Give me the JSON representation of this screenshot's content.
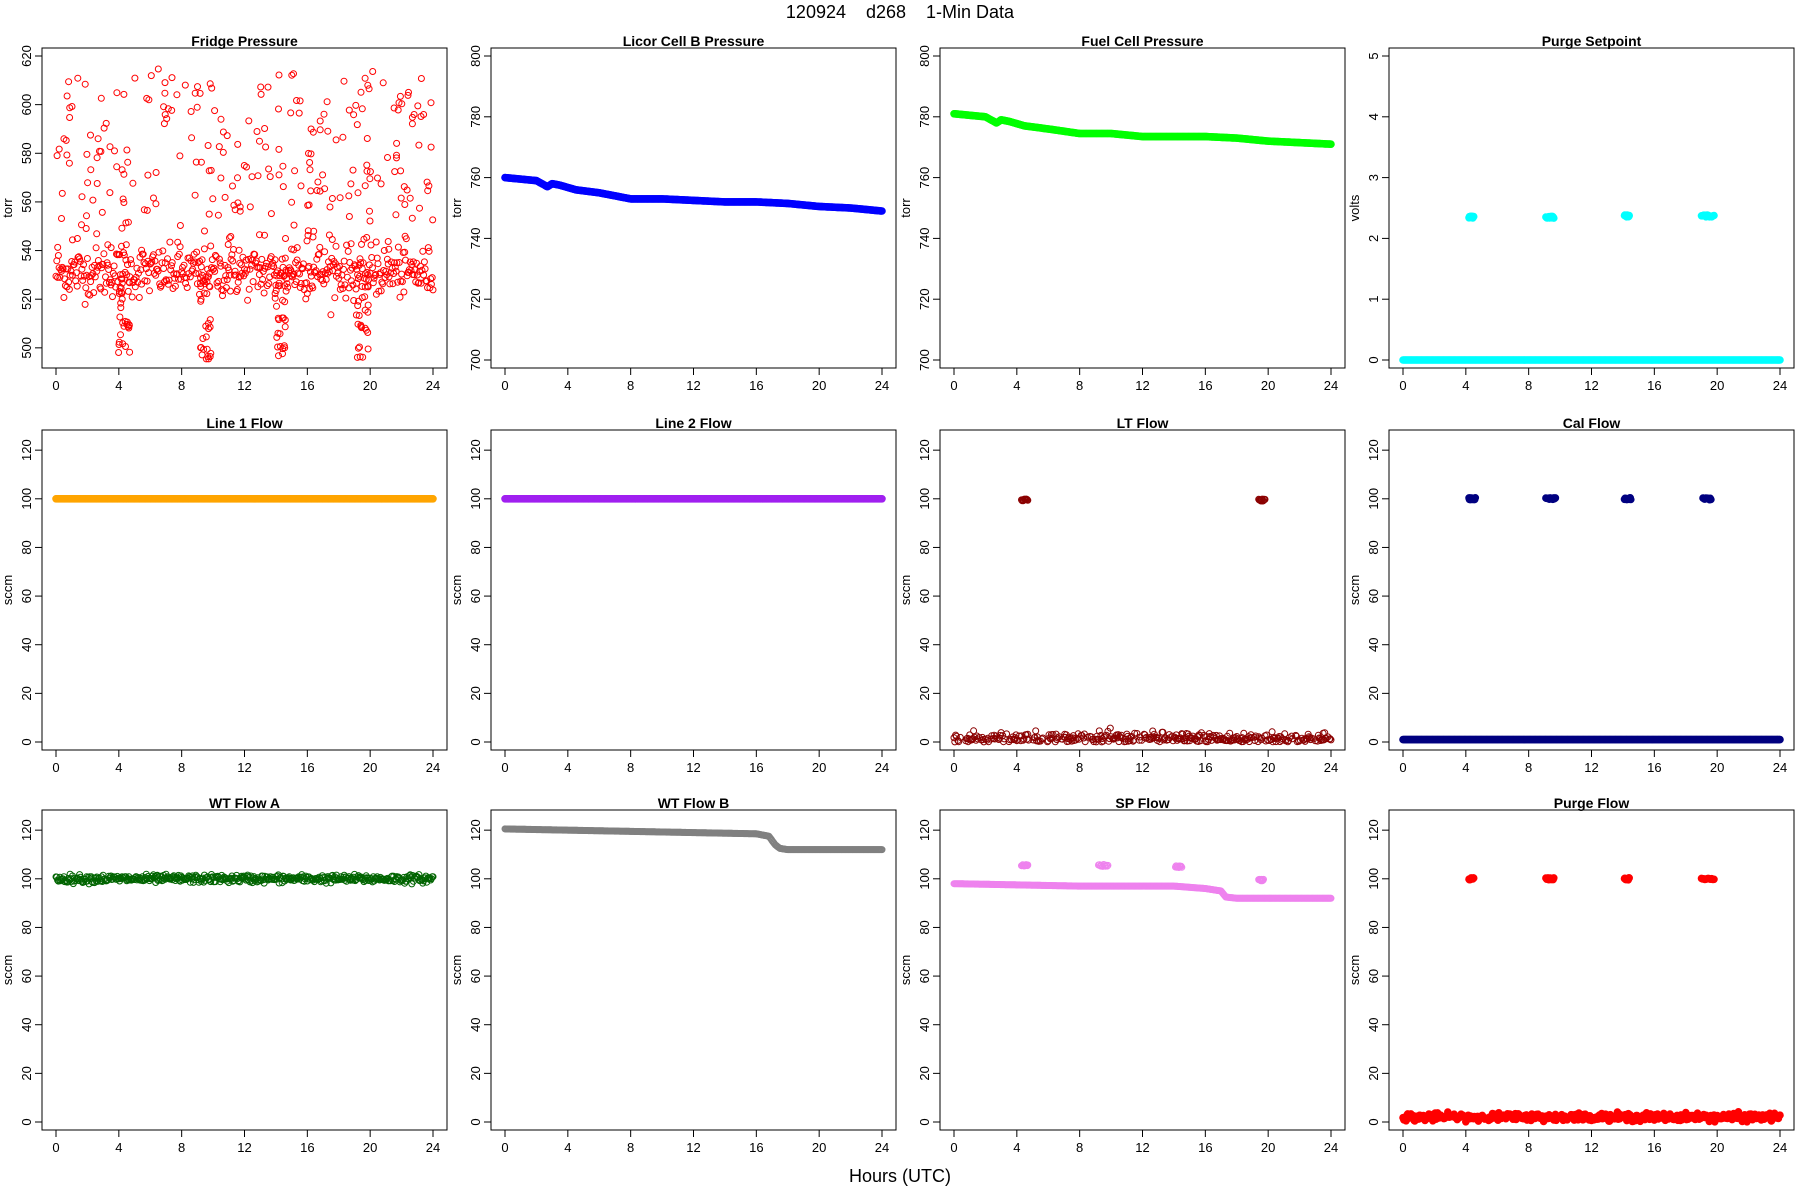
{
  "figure": {
    "title": "120924    d268    1-Min Data",
    "xlabel": "Hours (UTC)"
  },
  "chart_data": [
    {
      "type": "scatter",
      "title": "Fridge Pressure",
      "ylabel": "torr",
      "xlim": [
        0,
        24
      ],
      "ylim": [
        495,
        620
      ],
      "xticks": [
        0,
        4,
        8,
        12,
        16,
        20,
        24
      ],
      "yticks": [
        500,
        520,
        540,
        560,
        580,
        600,
        620
      ],
      "grid": false,
      "series": [
        {
          "color": "#ff0000",
          "marker": "open-circle",
          "baseline": 531,
          "spread": 5,
          "outliers": {
            "count": 260,
            "min": 540,
            "max": 615
          },
          "dips": [
            [
              4.3,
              498
            ],
            [
              9.5,
              495
            ],
            [
              14.3,
              496
            ],
            [
              19.5,
              496
            ]
          ]
        }
      ]
    },
    {
      "type": "scatter",
      "title": "Licor Cell B Pressure",
      "ylabel": "torr",
      "xlim": [
        0,
        24
      ],
      "ylim": [
        700,
        800
      ],
      "xticks": [
        0,
        4,
        8,
        12,
        16,
        20,
        24
      ],
      "yticks": [
        700,
        720,
        740,
        760,
        780,
        800
      ],
      "grid": false,
      "series": [
        {
          "color": "#0000ff",
          "marker": "filled-circle",
          "x": [
            0,
            1,
            2,
            2.7,
            3,
            3.5,
            4.5,
            6,
            8,
            10,
            12,
            14,
            16,
            18,
            20,
            22,
            24
          ],
          "y": [
            760,
            759.5,
            759,
            757,
            758,
            757.5,
            756,
            755,
            753,
            753,
            752.5,
            752,
            752,
            751.5,
            750.5,
            750,
            749
          ]
        }
      ]
    },
    {
      "type": "scatter",
      "title": "Fuel Cell Pressure",
      "ylabel": "torr",
      "xlim": [
        0,
        24
      ],
      "ylim": [
        700,
        800
      ],
      "xticks": [
        0,
        4,
        8,
        12,
        16,
        20,
        24
      ],
      "yticks": [
        700,
        720,
        740,
        760,
        780,
        800
      ],
      "grid": false,
      "series": [
        {
          "color": "#00ff00",
          "marker": "filled-circle",
          "x": [
            0,
            1,
            2,
            2.7,
            3,
            3.5,
            4.5,
            6,
            8,
            10,
            12,
            14,
            16,
            18,
            20,
            22,
            24
          ],
          "y": [
            781,
            780.5,
            780,
            778,
            779,
            778.5,
            777,
            776,
            774.5,
            774.5,
            773.5,
            773.5,
            773.5,
            773,
            772,
            771.5,
            771
          ]
        }
      ]
    },
    {
      "type": "scatter",
      "title": "Purge Setpoint",
      "ylabel": "volts",
      "xlim": [
        0,
        24
      ],
      "ylim": [
        0,
        5
      ],
      "xticks": [
        0,
        4,
        8,
        12,
        16,
        20,
        24
      ],
      "yticks": [
        0,
        1,
        2,
        3,
        4,
        5
      ],
      "grid": false,
      "series": [
        {
          "color": "#00ffff",
          "marker": "filled-circle",
          "baseline": 0,
          "spread": 0,
          "events": [
            [
              4.2,
              4.5,
              2.35
            ],
            [
              9.1,
              9.6,
              2.35
            ],
            [
              14.1,
              14.4,
              2.37
            ],
            [
              19.0,
              19.8,
              2.37
            ]
          ]
        }
      ]
    },
    {
      "type": "scatter",
      "title": "Line 1 Flow",
      "ylabel": "sccm",
      "xlim": [
        0,
        24
      ],
      "ylim": [
        0,
        125
      ],
      "xticks": [
        0,
        4,
        8,
        12,
        16,
        20,
        24
      ],
      "yticks": [
        0,
        20,
        40,
        60,
        80,
        100,
        120
      ],
      "grid": false,
      "series": [
        {
          "color": "#ffa500",
          "marker": "filled-circle",
          "baseline": 100,
          "spread": 0
        }
      ]
    },
    {
      "type": "scatter",
      "title": "Line 2 Flow",
      "ylabel": "sccm",
      "xlim": [
        0,
        24
      ],
      "ylim": [
        0,
        125
      ],
      "xticks": [
        0,
        4,
        8,
        12,
        16,
        20,
        24
      ],
      "yticks": [
        0,
        20,
        40,
        60,
        80,
        100,
        120
      ],
      "grid": false,
      "series": [
        {
          "color": "#a020f0",
          "marker": "filled-circle",
          "baseline": 100,
          "spread": 0
        }
      ]
    },
    {
      "type": "scatter",
      "title": "LT Flow",
      "ylabel": "sccm",
      "xlim": [
        0,
        24
      ],
      "ylim": [
        0,
        125
      ],
      "xticks": [
        0,
        4,
        8,
        12,
        16,
        20,
        24
      ],
      "yticks": [
        0,
        20,
        40,
        60,
        80,
        100,
        120
      ],
      "grid": false,
      "series": [
        {
          "color": "#8b0000",
          "marker": "open-circle",
          "baseline": 1,
          "spread": 1.5,
          "events": [
            [
              4.3,
              4.7,
              99.5
            ],
            [
              19.4,
              19.8,
              99.5
            ]
          ]
        }
      ]
    },
    {
      "type": "scatter",
      "title": "Cal Flow",
      "ylabel": "sccm",
      "xlim": [
        0,
        24
      ],
      "ylim": [
        0,
        125
      ],
      "xticks": [
        0,
        4,
        8,
        12,
        16,
        20,
        24
      ],
      "yticks": [
        0,
        20,
        40,
        60,
        80,
        100,
        120
      ],
      "grid": false,
      "series": [
        {
          "color": "#000080",
          "marker": "filled-circle",
          "baseline": 1,
          "spread": 0,
          "events": [
            [
              4.2,
              4.6,
              100
            ],
            [
              9.1,
              9.7,
              100
            ],
            [
              14.1,
              14.5,
              100
            ],
            [
              19.1,
              19.6,
              100
            ]
          ]
        }
      ]
    },
    {
      "type": "scatter",
      "title": "WT Flow A",
      "ylabel": "sccm",
      "xlim": [
        0,
        24
      ],
      "ylim": [
        0,
        125
      ],
      "xticks": [
        0,
        4,
        8,
        12,
        16,
        20,
        24
      ],
      "yticks": [
        0,
        20,
        40,
        60,
        80,
        100,
        120
      ],
      "grid": false,
      "series": [
        {
          "color": "#006400",
          "marker": "open-circle",
          "baseline": 100,
          "spread": 0.8
        }
      ]
    },
    {
      "type": "scatter",
      "title": "WT Flow B",
      "ylabel": "sccm",
      "xlim": [
        0,
        24
      ],
      "ylim": [
        0,
        125
      ],
      "xticks": [
        0,
        4,
        8,
        12,
        16,
        20,
        24
      ],
      "yticks": [
        0,
        20,
        40,
        60,
        80,
        100,
        120
      ],
      "grid": false,
      "series": [
        {
          "color": "#808080",
          "marker": "open-circle",
          "x": [
            0,
            4,
            8,
            12,
            16,
            16.8,
            17.2,
            17.5,
            18,
            20,
            24
          ],
          "y": [
            120.5,
            120,
            119.5,
            119,
            118.5,
            117.5,
            114,
            112.5,
            112,
            112,
            112
          ]
        }
      ]
    },
    {
      "type": "scatter",
      "title": "SP Flow",
      "ylabel": "sccm",
      "xlim": [
        0,
        24
      ],
      "ylim": [
        0,
        125
      ],
      "xticks": [
        0,
        4,
        8,
        12,
        16,
        20,
        24
      ],
      "yticks": [
        0,
        20,
        40,
        60,
        80,
        100,
        120
      ],
      "grid": false,
      "series": [
        {
          "color": "#ee82ee",
          "marker": "open-circle",
          "x": [
            0,
            4,
            8,
            12,
            14,
            16,
            17,
            17.3,
            18,
            20,
            24
          ],
          "y": [
            98,
            97.5,
            97,
            97,
            97,
            96,
            95,
            92.5,
            92,
            92,
            92
          ],
          "events": [
            [
              4.3,
              4.7,
              105.5
            ],
            [
              9.2,
              9.8,
              105.5
            ],
            [
              14.1,
              14.5,
              105
            ],
            [
              19.4,
              19.7,
              99.5
            ]
          ]
        }
      ]
    },
    {
      "type": "scatter",
      "title": "Purge Flow",
      "ylabel": "sccm",
      "xlim": [
        0,
        24
      ],
      "ylim": [
        0,
        125
      ],
      "xticks": [
        0,
        4,
        8,
        12,
        16,
        20,
        24
      ],
      "yticks": [
        0,
        20,
        40,
        60,
        80,
        100,
        120
      ],
      "grid": false,
      "series": [
        {
          "color": "#ff0000",
          "marker": "filled-circle",
          "baseline": 2,
          "spread": 0.8,
          "events": [
            [
              4.2,
              4.5,
              100
            ],
            [
              9.1,
              9.6,
              100
            ],
            [
              14.1,
              14.4,
              100
            ],
            [
              19.0,
              19.8,
              100
            ]
          ]
        }
      ]
    }
  ]
}
